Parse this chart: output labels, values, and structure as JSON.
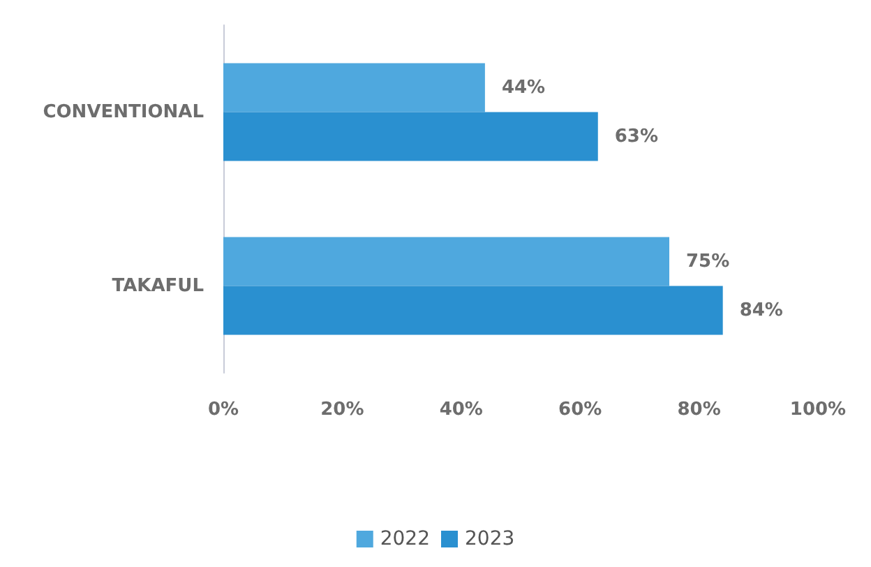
{
  "chart_data": {
    "type": "bar",
    "orientation": "horizontal",
    "categories": [
      "CONVENTIONAL",
      "TAKAFUL"
    ],
    "series": [
      {
        "name": "2022",
        "color": "#4fa8de",
        "values": [
          44,
          75
        ],
        "value_labels": [
          "44%",
          "75%"
        ]
      },
      {
        "name": "2023",
        "color": "#2a90d0",
        "values": [
          63,
          84
        ],
        "value_labels": [
          "63%",
          "84%"
        ]
      }
    ],
    "xlim": [
      0,
      100
    ],
    "xticks": [
      {
        "value": 0,
        "label": "0%"
      },
      {
        "value": 20,
        "label": "20%"
      },
      {
        "value": 40,
        "label": "40%"
      },
      {
        "value": 60,
        "label": "60%"
      },
      {
        "value": 80,
        "label": "80%"
      },
      {
        "value": 100,
        "label": "100%"
      }
    ],
    "grid": false,
    "legend": "bottom"
  }
}
